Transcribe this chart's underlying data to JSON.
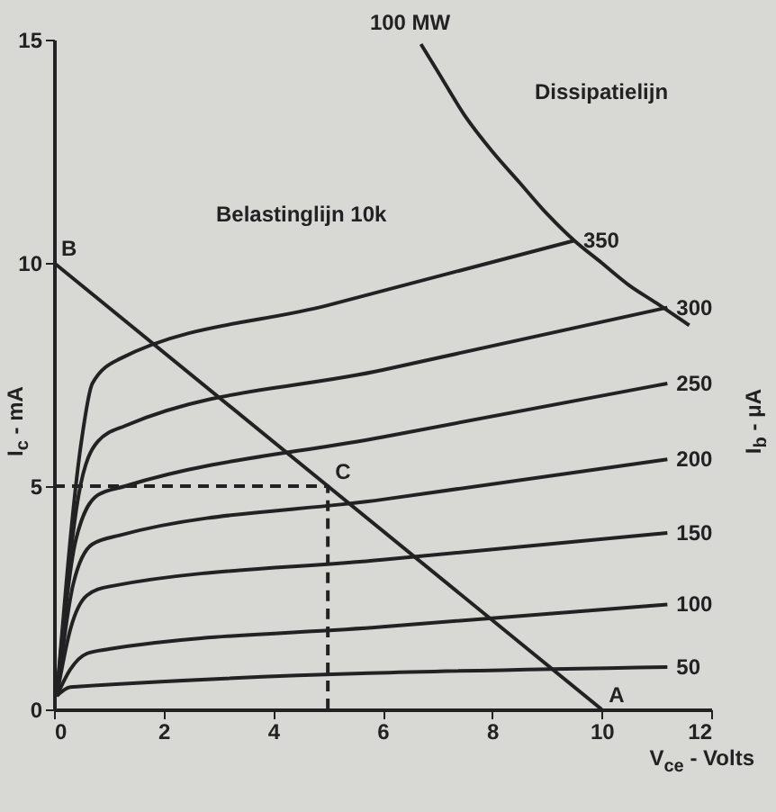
{
  "chart_data": {
    "type": "line",
    "xlabel": "V$_{ce}$ - Volts",
    "ylabel": "I$_{c}$ - mA",
    "y2label": "I$_{b}$ - μA",
    "xlim": [
      0,
      12
    ],
    "xticks": [
      0,
      2,
      4,
      6,
      8,
      10,
      12
    ],
    "ylim": [
      0,
      15
    ],
    "yticks": [
      0,
      5,
      10,
      15
    ],
    "grid": false,
    "line_style": "solid",
    "marker": "none",
    "series": [
      {
        "name": "50",
        "color": "#222222",
        "x": [
          0.05,
          0.3,
          11.2
        ],
        "values": [
          0.3,
          0.5,
          0.95
        ]
      },
      {
        "name": "100",
        "color": "#222222",
        "x": [
          0.05,
          0.3,
          0.6,
          1,
          6,
          11.2
        ],
        "values": [
          0.3,
          0.9,
          1.25,
          1.35,
          1.85,
          2.35
        ]
      },
      {
        "name": "150",
        "color": "#222222",
        "x": [
          0.05,
          0.3,
          0.6,
          1,
          6,
          11.2
        ],
        "values": [
          0.3,
          1.8,
          2.55,
          2.75,
          3.35,
          3.95
        ]
      },
      {
        "name": "200",
        "color": "#222222",
        "x": [
          0.05,
          0.35,
          0.7,
          1.2,
          6,
          11.2
        ],
        "values": [
          0.3,
          2.8,
          3.7,
          3.9,
          4.7,
          5.6
        ]
      },
      {
        "name": "250",
        "color": "#222222",
        "x": [
          0.05,
          0.4,
          0.8,
          1.3,
          6,
          11.2
        ],
        "values": [
          0.3,
          3.8,
          4.8,
          5.0,
          6.1,
          7.3
        ]
      },
      {
        "name": "300",
        "color": "#222222",
        "x": [
          0.05,
          0.45,
          0.8,
          1.3,
          6,
          11.2
        ],
        "values": [
          0.3,
          4.8,
          6.0,
          6.35,
          7.6,
          9.0
        ]
      },
      {
        "name": "350",
        "color": "#222222",
        "x": [
          0.05,
          0.5,
          0.7,
          1.2,
          5,
          9.5
        ],
        "values": [
          0.3,
          6.0,
          7.3,
          7.85,
          9.05,
          10.5
        ]
      },
      {
        "color": "#222222",
        "x": [
          0,
          10
        ],
        "values": [
          10,
          0
        ]
      },
      {
        "name": "100 MW",
        "color": "#222222",
        "x": [
          6.7,
          7,
          7.5,
          8,
          8.5,
          9,
          9.5,
          10,
          10.5,
          11,
          11.6
        ],
        "values": [
          14.9,
          14.3,
          13.3,
          12.5,
          11.8,
          11.1,
          10.5,
          10,
          9.5,
          9.1,
          8.6
        ]
      },
      {
        "color": "#222222",
        "line_style": "dashed",
        "x": [
          0,
          5,
          5
        ],
        "values": [
          5,
          5,
          0
        ]
      }
    ],
    "annotations": [
      "Dissipatielijn",
      "Belastinglijn 10k",
      {
        "text": "B",
        "x": 0,
        "y": 10
      },
      {
        "text": "C",
        "x": 5,
        "y": 5
      },
      {
        "text": "A",
        "x": 10,
        "y": 0
      }
    ]
  }
}
